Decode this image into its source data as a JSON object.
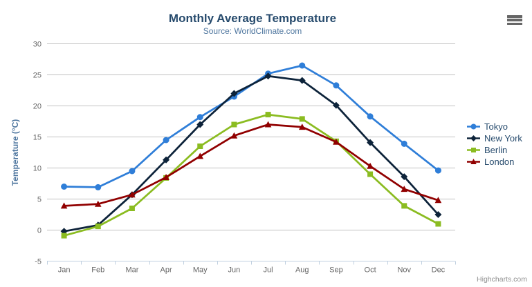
{
  "chart_data": {
    "type": "line",
    "title": "Monthly Average Temperature",
    "subtitle": "Source: WorldClimate.com",
    "xlabel": "",
    "ylabel": "Temperature (°C)",
    "ylim": [
      -5,
      30
    ],
    "ytick_interval": 5,
    "grid": true,
    "legend_position": "right",
    "categories": [
      "Jan",
      "Feb",
      "Mar",
      "Apr",
      "May",
      "Jun",
      "Jul",
      "Aug",
      "Sep",
      "Oct",
      "Nov",
      "Dec"
    ],
    "series": [
      {
        "name": "Tokyo",
        "color": "#2f7ed8",
        "marker": "circle",
        "values": [
          7.0,
          6.9,
          9.5,
          14.5,
          18.2,
          21.5,
          25.2,
          26.5,
          23.3,
          18.3,
          13.9,
          9.6
        ]
      },
      {
        "name": "New York",
        "color": "#0d233a",
        "marker": "diamond",
        "values": [
          -0.2,
          0.8,
          5.7,
          11.3,
          17.0,
          22.0,
          24.8,
          24.1,
          20.1,
          14.1,
          8.6,
          2.5
        ]
      },
      {
        "name": "Berlin",
        "color": "#8bbc21",
        "marker": "square",
        "values": [
          -0.9,
          0.6,
          3.5,
          8.4,
          13.5,
          17.0,
          18.6,
          17.9,
          14.3,
          9.0,
          3.9,
          1.0
        ]
      },
      {
        "name": "London",
        "color": "#910000",
        "marker": "triangle",
        "values": [
          3.9,
          4.2,
          5.7,
          8.5,
          11.9,
          15.2,
          17.0,
          16.6,
          14.2,
          10.3,
          6.6,
          4.8
        ]
      }
    ]
  },
  "credits": {
    "label": "Highcharts.com"
  },
  "export_menu": {
    "icon": "hamburger"
  },
  "colors": {
    "title": "#274b6d",
    "subtitle": "#4d759e",
    "axis_title": "#4d759e",
    "axis_labels": "#666666",
    "legend_text": "#274b6d",
    "gridline": "#c0c0c0",
    "axis_line": "#c0d0e0",
    "credits": "#909090",
    "menu_icon": "#666666"
  }
}
